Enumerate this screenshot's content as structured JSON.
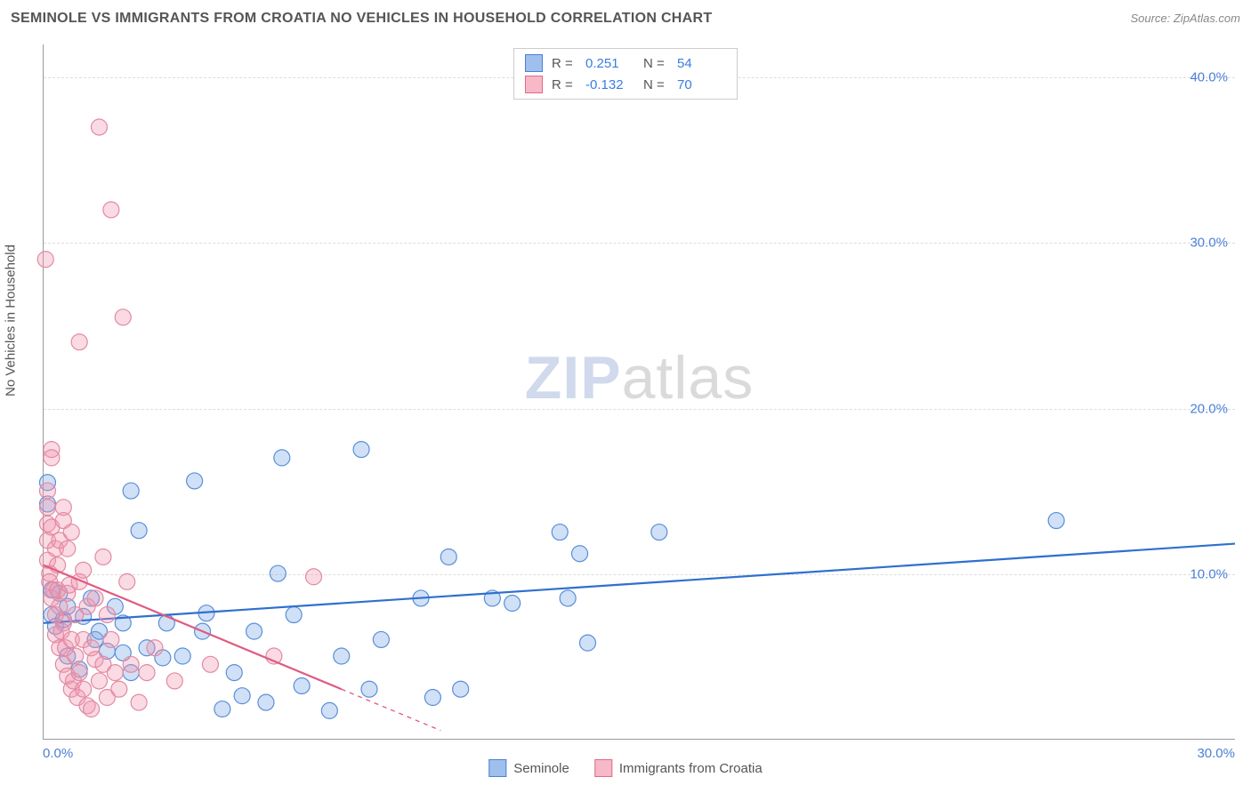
{
  "header": {
    "title": "SEMINOLE VS IMMIGRANTS FROM CROATIA NO VEHICLES IN HOUSEHOLD CORRELATION CHART",
    "source_prefix": "Source: ",
    "source_name": "ZipAtlas.com"
  },
  "watermark": {
    "part_a": "ZIP",
    "part_b": "atlas"
  },
  "chart": {
    "type": "scatter",
    "ylabel": "No Vehicles in Household",
    "xlim": [
      0,
      30
    ],
    "ylim": [
      0,
      42
    ],
    "yticks": [
      10,
      20,
      30,
      40
    ],
    "ytick_labels": [
      "10.0%",
      "20.0%",
      "30.0%",
      "40.0%"
    ],
    "xticks": [
      0,
      30
    ],
    "xtick_labels": [
      "0.0%",
      "30.0%"
    ],
    "grid_color": "#dddddd",
    "axis_color": "#999999",
    "background_color": "#ffffff",
    "marker_radius": 9,
    "marker_stroke_width": 1.2,
    "line_width": 2.2,
    "tick_color": "#4a7fd8"
  },
  "legend_top": {
    "rows": [
      {
        "swatch_fill": "#9fc0ec",
        "swatch_stroke": "#4a7fd8",
        "r_label": "R =",
        "r_value": "0.251",
        "r_color": "#3b7de0",
        "n_label": "N =",
        "n_value": "54",
        "n_color": "#3b7de0"
      },
      {
        "swatch_fill": "#f7b8c8",
        "swatch_stroke": "#e06a8a",
        "r_label": "R =",
        "r_value": "-0.132",
        "r_color": "#3b7de0",
        "n_label": "N =",
        "n_value": "70",
        "n_color": "#3b7de0"
      }
    ]
  },
  "legend_bottom": {
    "items": [
      {
        "swatch_fill": "#9fc0ec",
        "swatch_stroke": "#4a7fd8",
        "label": "Seminole"
      },
      {
        "swatch_fill": "#f7b8c8",
        "swatch_stroke": "#e06a8a",
        "label": "Immigrants from Croatia"
      }
    ]
  },
  "series": [
    {
      "name": "seminole",
      "marker_fill": "rgba(120,165,230,0.35)",
      "marker_stroke": "#5a8fd8",
      "line_color": "#2f6fd0",
      "trend": {
        "x1": 0,
        "y1": 7.0,
        "x2": 30,
        "y2": 11.8,
        "solid_until_x": 30
      },
      "points": [
        [
          0.1,
          15.5
        ],
        [
          0.1,
          14.2
        ],
        [
          0.2,
          9.0
        ],
        [
          0.2,
          7.5
        ],
        [
          0.3,
          6.8
        ],
        [
          0.4,
          8.8
        ],
        [
          0.5,
          7.2
        ],
        [
          0.6,
          8.0
        ],
        [
          0.6,
          5.0
        ],
        [
          0.9,
          4.2
        ],
        [
          1.0,
          7.4
        ],
        [
          1.2,
          8.5
        ],
        [
          1.3,
          6.0
        ],
        [
          1.4,
          6.5
        ],
        [
          1.6,
          5.3
        ],
        [
          1.8,
          8.0
        ],
        [
          2.0,
          7.0
        ],
        [
          2.0,
          5.2
        ],
        [
          2.2,
          4.0
        ],
        [
          2.2,
          15.0
        ],
        [
          2.4,
          12.6
        ],
        [
          2.6,
          5.5
        ],
        [
          3.1,
          7.0
        ],
        [
          3.0,
          4.9
        ],
        [
          3.5,
          5.0
        ],
        [
          3.8,
          15.6
        ],
        [
          4.0,
          6.5
        ],
        [
          4.1,
          7.6
        ],
        [
          4.5,
          1.8
        ],
        [
          4.8,
          4.0
        ],
        [
          5.0,
          2.6
        ],
        [
          5.3,
          6.5
        ],
        [
          5.6,
          2.2
        ],
        [
          5.9,
          10.0
        ],
        [
          6.0,
          17.0
        ],
        [
          6.3,
          7.5
        ],
        [
          6.5,
          3.2
        ],
        [
          7.2,
          1.7
        ],
        [
          7.5,
          5.0
        ],
        [
          8.0,
          17.5
        ],
        [
          8.2,
          3.0
        ],
        [
          8.5,
          6.0
        ],
        [
          9.5,
          8.5
        ],
        [
          9.8,
          2.5
        ],
        [
          10.2,
          11.0
        ],
        [
          10.5,
          3.0
        ],
        [
          11.3,
          8.5
        ],
        [
          11.8,
          8.2
        ],
        [
          13.0,
          12.5
        ],
        [
          13.2,
          8.5
        ],
        [
          13.5,
          11.2
        ],
        [
          13.7,
          5.8
        ],
        [
          15.5,
          12.5
        ],
        [
          25.5,
          13.2
        ]
      ]
    },
    {
      "name": "croatia",
      "marker_fill": "rgba(240,150,175,0.35)",
      "marker_stroke": "#e28aa3",
      "line_color": "#e05a80",
      "trend": {
        "x1": 0,
        "y1": 10.5,
        "x2": 10,
        "y2": 0.5,
        "solid_until_x": 7.5
      },
      "points": [
        [
          0.05,
          29.0
        ],
        [
          0.1,
          15.0
        ],
        [
          0.1,
          14.0
        ],
        [
          0.1,
          13.0
        ],
        [
          0.1,
          12.0
        ],
        [
          0.1,
          10.8
        ],
        [
          0.15,
          10.0
        ],
        [
          0.15,
          9.5
        ],
        [
          0.2,
          8.5
        ],
        [
          0.2,
          12.8
        ],
        [
          0.2,
          17.5
        ],
        [
          0.2,
          17.0
        ],
        [
          0.25,
          9.0
        ],
        [
          0.3,
          7.5
        ],
        [
          0.3,
          6.3
        ],
        [
          0.3,
          11.5
        ],
        [
          0.35,
          10.5
        ],
        [
          0.35,
          9.0
        ],
        [
          0.4,
          8.0
        ],
        [
          0.4,
          5.5
        ],
        [
          0.4,
          12.0
        ],
        [
          0.45,
          6.5
        ],
        [
          0.5,
          14.0
        ],
        [
          0.5,
          13.2
        ],
        [
          0.5,
          7.0
        ],
        [
          0.5,
          4.5
        ],
        [
          0.55,
          5.5
        ],
        [
          0.6,
          11.5
        ],
        [
          0.6,
          8.8
        ],
        [
          0.6,
          3.8
        ],
        [
          0.65,
          9.3
        ],
        [
          0.7,
          6.0
        ],
        [
          0.7,
          3.0
        ],
        [
          0.7,
          12.5
        ],
        [
          0.75,
          3.5
        ],
        [
          0.8,
          5.0
        ],
        [
          0.8,
          7.5
        ],
        [
          0.85,
          2.5
        ],
        [
          0.9,
          24.0
        ],
        [
          0.9,
          4.0
        ],
        [
          0.9,
          9.5
        ],
        [
          1.0,
          3.0
        ],
        [
          1.0,
          6.0
        ],
        [
          1.0,
          10.2
        ],
        [
          1.1,
          8.0
        ],
        [
          1.1,
          2.0
        ],
        [
          1.2,
          5.5
        ],
        [
          1.2,
          1.8
        ],
        [
          1.3,
          4.8
        ],
        [
          1.3,
          8.5
        ],
        [
          1.4,
          37.0
        ],
        [
          1.4,
          3.5
        ],
        [
          1.5,
          4.5
        ],
        [
          1.5,
          11.0
        ],
        [
          1.6,
          7.5
        ],
        [
          1.6,
          2.5
        ],
        [
          1.7,
          6.0
        ],
        [
          1.7,
          32.0
        ],
        [
          1.8,
          4.0
        ],
        [
          1.9,
          3.0
        ],
        [
          2.0,
          25.5
        ],
        [
          2.1,
          9.5
        ],
        [
          2.2,
          4.5
        ],
        [
          2.4,
          2.2
        ],
        [
          2.6,
          4.0
        ],
        [
          2.8,
          5.5
        ],
        [
          3.3,
          3.5
        ],
        [
          4.2,
          4.5
        ],
        [
          5.8,
          5.0
        ],
        [
          6.8,
          9.8
        ]
      ]
    }
  ]
}
